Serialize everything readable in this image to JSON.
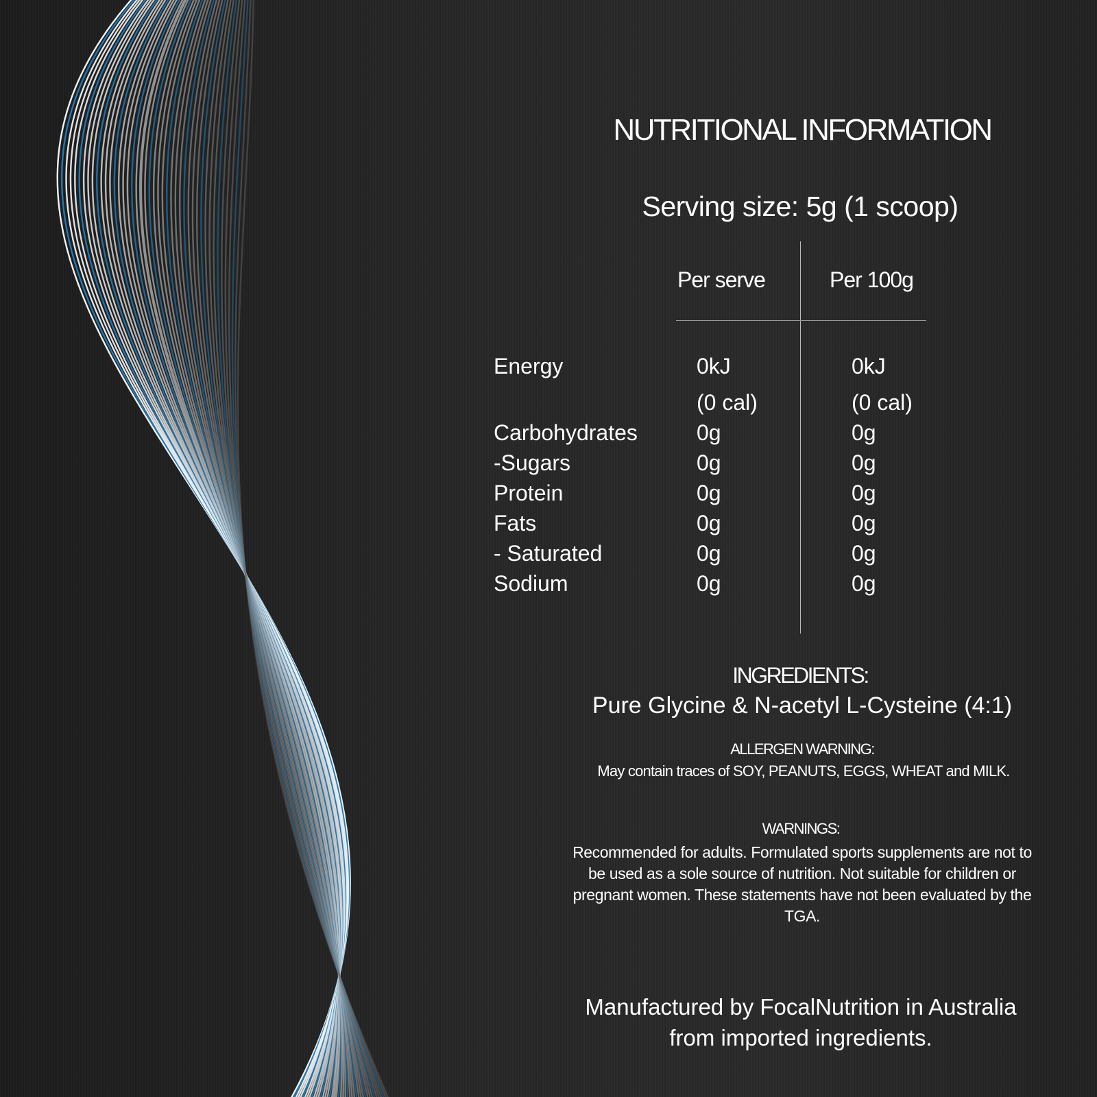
{
  "title": "NUTRITIONAL INFORMATION",
  "serving_size": "Serving size: 5g (1 scoop)",
  "table": {
    "headers": [
      "Per serve",
      "Per 100g"
    ],
    "rows": [
      {
        "label": "Energy",
        "per_serve": "0kJ",
        "per_100g": "0kJ"
      },
      {
        "label": "",
        "per_serve": "(0 cal)",
        "per_100g": "(0 cal)"
      },
      {
        "label": "Carbohydrates",
        "per_serve": "0g",
        "per_100g": "0g"
      },
      {
        "label": "-Sugars",
        "per_serve": "0g",
        "per_100g": "0g"
      },
      {
        "label": "Protein",
        "per_serve": "0g",
        "per_100g": "0g"
      },
      {
        "label": "Fats",
        "per_serve": "0g",
        "per_100g": "0g"
      },
      {
        "label": "- Saturated",
        "per_serve": "0g",
        "per_100g": "0g"
      },
      {
        "label": "Sodium",
        "per_serve": "0g",
        "per_100g": "0g"
      }
    ]
  },
  "ingredients": {
    "heading": "INGREDIENTS:",
    "text": "Pure Glycine & N-acetyl L-Cysteine (4:1)"
  },
  "allergen": {
    "heading": "ALLERGEN WARNING:",
    "text": "May contain traces of SOY, PEANUTS, EGGS, WHEAT and MILK."
  },
  "warnings": {
    "heading": "WARNINGS:",
    "text": "Recommended for adults. Formulated sports supplements are not to be used as a sole source of nutrition. Not suitable for children or pregnant women. These statements have not been evaluated by the TGA."
  },
  "manufacturer": "Manufactured by FocalNutrition in Australia from imported ingredients.",
  "colors": {
    "background": "#262626",
    "wave_blue": "#1f7fc0",
    "wave_white": "#ffffff",
    "text": "#ffffff"
  }
}
